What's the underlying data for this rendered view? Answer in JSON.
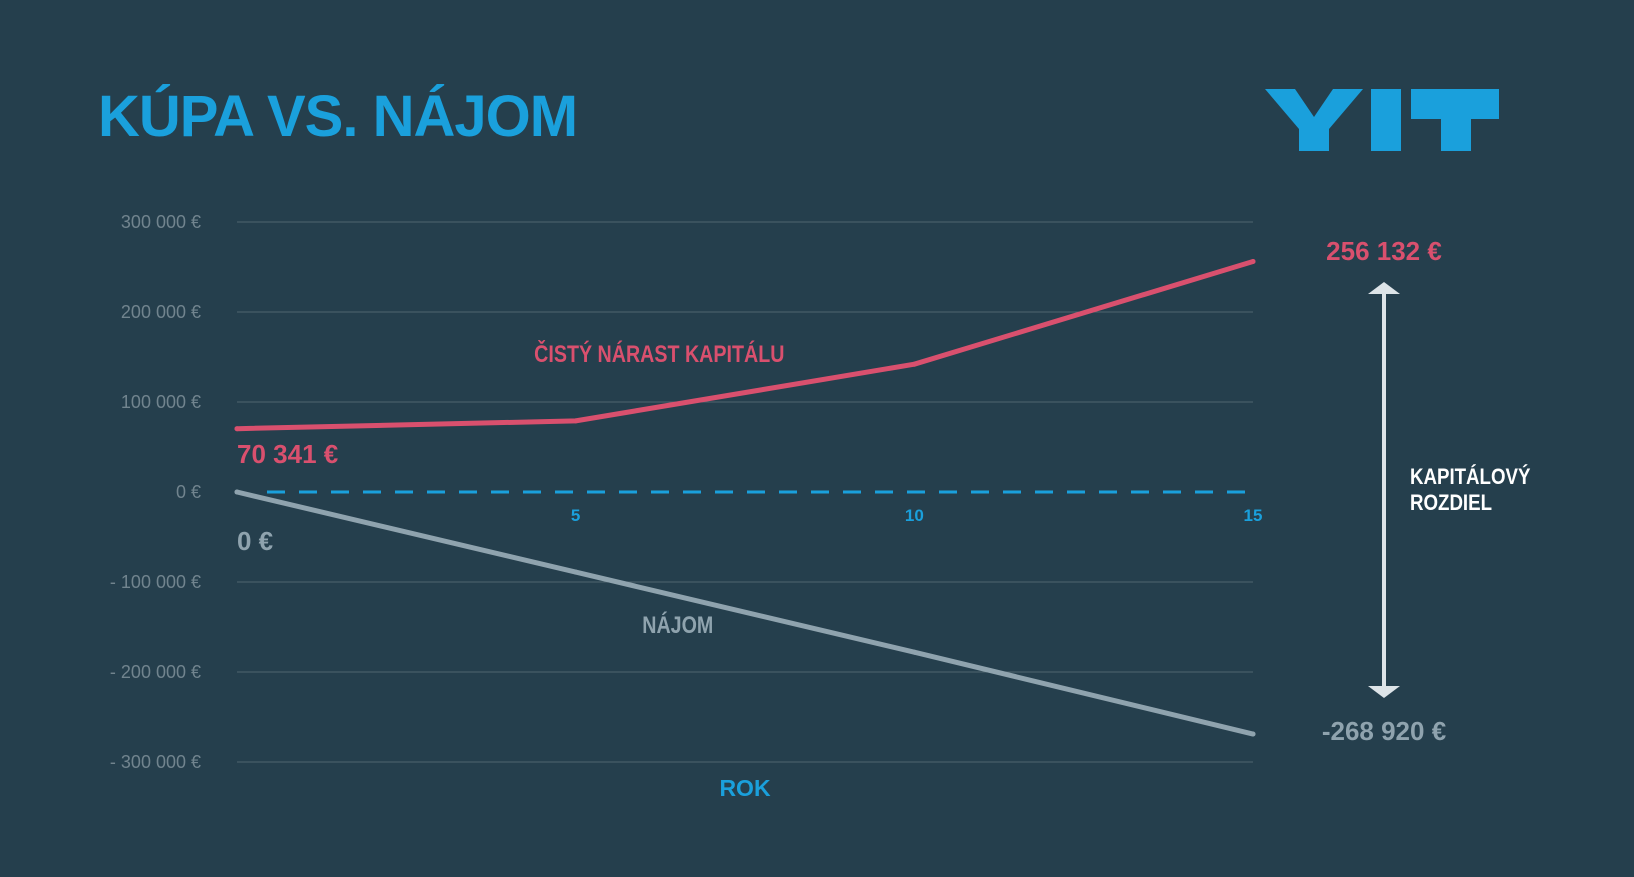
{
  "title": "KÚPA VS. NÁJOM",
  "logo_text": "YIT",
  "colors": {
    "background": "#253f4d",
    "title": "#1aa0dc",
    "kapital": "#d9506e",
    "najom": "#8fa3ae",
    "ytick": "#71848e",
    "grid": "#50656f",
    "zero_line": "#1aa0dc",
    "arrow": "#dde4e8",
    "diff_label": "#ffffff"
  },
  "chart_data": {
    "type": "line",
    "title": "KÚPA VS. NÁJOM",
    "xlabel": "ROK",
    "ylabel": "",
    "x": [
      0,
      5,
      10,
      15
    ],
    "xlim": [
      0,
      15
    ],
    "xticks": [
      "5",
      "10",
      "15"
    ],
    "xtick_values": [
      5,
      10,
      15
    ],
    "ylim": [
      -300000,
      300000
    ],
    "yticks": [
      "300 000 €",
      "200 000 €",
      "100 000 €",
      "0 €",
      "- 100 000 €",
      "- 200 000 €",
      "- 300 000 €"
    ],
    "ytick_values": [
      300000,
      200000,
      100000,
      0,
      -100000,
      -200000,
      -300000
    ],
    "grid": true,
    "zero_line": "dashed",
    "series": [
      {
        "key": "kapital",
        "name": "ČISTÝ NÁRAST KAPITÁLU",
        "values": [
          70341,
          79000,
          142000,
          256132
        ]
      },
      {
        "key": "najom",
        "name": "NÁJOM",
        "values": [
          0,
          -89000,
          -178000,
          -268920
        ]
      }
    ],
    "annotations": {
      "kapital_start": "70 341 €",
      "kapital_end": "256 132 €",
      "najom_start": "0 €",
      "najom_end": "-268 920 €",
      "difference": [
        "KAPITÁLOVÝ",
        "ROZDIEL"
      ]
    }
  }
}
